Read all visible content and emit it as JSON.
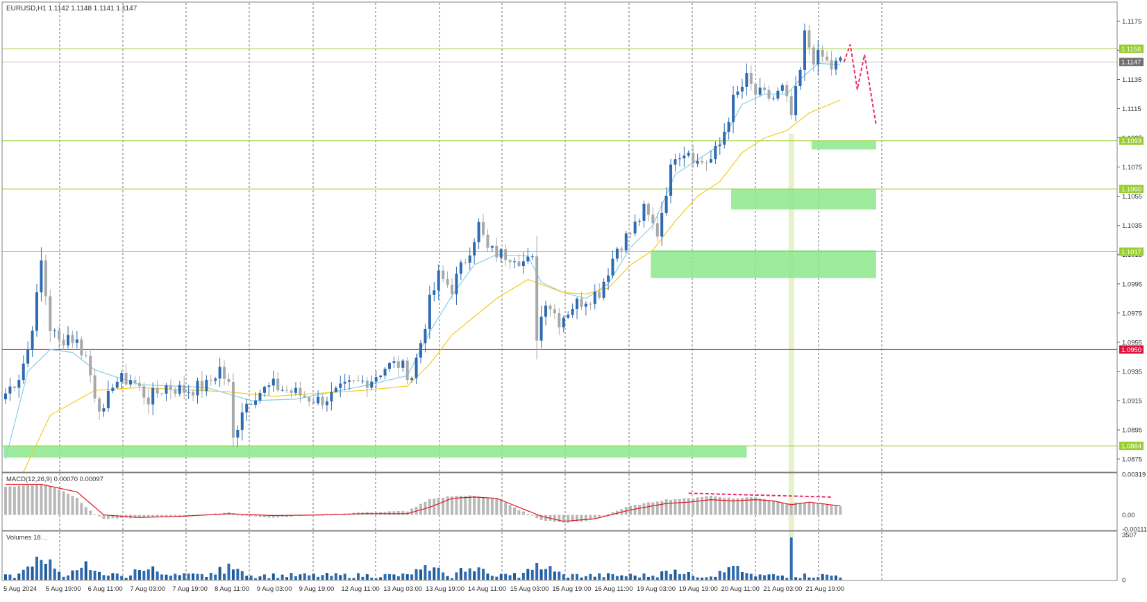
{
  "header": {
    "text": "EURUSD,H1  1.1142 1.1148 1.1141 1.1147"
  },
  "chart_data": {
    "type": "candlestick",
    "symbol": "EURUSD",
    "timeframe": "H1",
    "price_axis": {
      "range": [
        1.0866,
        1.1188
      ],
      "ticks": [
        "1.1175",
        "1.1155",
        "1.1135",
        "1.1115",
        "1.1095",
        "1.1075",
        "1.1055",
        "1.1035",
        "1.1015",
        "1.0995",
        "1.0975",
        "1.0955",
        "1.0935",
        "1.0915",
        "1.0895",
        "1.0875"
      ]
    },
    "time_axis": {
      "labels": [
        "5 Aug 2024",
        "5 Aug 19:00",
        "6 Aug 11:00",
        "7 Aug 03:00",
        "7 Aug 19:00",
        "8 Aug 11:00",
        "9 Aug 03:00",
        "9 Aug 19:00",
        "12 Aug 11:00",
        "13 Aug 03:00",
        "13 Aug 19:00",
        "14 Aug 11:00",
        "15 Aug 03:00",
        "15 Aug 19:00",
        "16 Aug 11:00",
        "19 Aug 03:00",
        "19 Aug 19:00",
        "20 Aug 11:00",
        "21 Aug 03:00",
        "21 Aug 19:00"
      ]
    },
    "price_labels": [
      {
        "text": "1.1156",
        "value": 1.1156,
        "color": "#9acd32"
      },
      {
        "text": "1.1147",
        "value": 1.1147,
        "color": "#707070"
      },
      {
        "text": "1.1093",
        "value": 1.1093,
        "color": "#9acd32"
      },
      {
        "text": "1.1060",
        "value": 1.106,
        "color": "#9acd32"
      },
      {
        "text": "1.1017",
        "value": 1.1017,
        "color": "#9acd32"
      },
      {
        "text": "1.0950",
        "value": 1.095,
        "color": "#dc143c"
      },
      {
        "text": "1.0884",
        "value": 1.0884,
        "color": "#9acd32"
      }
    ],
    "levels": [
      {
        "value": 1.1156,
        "color": "#9acd32"
      },
      {
        "value": 1.1093,
        "color": "#9acd32"
      },
      {
        "value": 1.106,
        "color": "#9acd32"
      },
      {
        "value": 1.1017,
        "color": "#9acd32"
      },
      {
        "value": 1.095,
        "color": "#dc143c"
      },
      {
        "value": 1.0884,
        "color": "#9acd32"
      }
    ],
    "zones": [
      {
        "bar_from": 181,
        "bar_to": 195,
        "price_from": 1.1093,
        "price_to": 1.1087
      },
      {
        "bar_from": 163,
        "bar_to": 195,
        "price_from": 1.106,
        "price_to": 1.1046
      },
      {
        "bar_from": 145,
        "bar_to": 195,
        "price_from": 1.1018,
        "price_to": 1.0999
      },
      {
        "bar_from": 0,
        "bar_to": 166,
        "price_from": 1.0884,
        "price_to": 1.0876
      }
    ],
    "highlight_bar": 176,
    "projection": [
      [
        187.8,
        1.1147
      ],
      [
        189.2,
        1.1159
      ],
      [
        190.8,
        1.1128
      ],
      [
        192.4,
        1.1152
      ],
      [
        195,
        1.1104
      ]
    ],
    "close_anchors": [
      [
        0,
        1.092
      ],
      [
        3,
        1.0932
      ],
      [
        5,
        1.095
      ],
      [
        7,
        1.0985
      ],
      [
        8,
        1.101
      ],
      [
        10,
        1.0965
      ],
      [
        12,
        1.0955
      ],
      [
        14,
        1.096
      ],
      [
        16,
        1.0955
      ],
      [
        18,
        1.0945
      ],
      [
        20,
        1.092
      ],
      [
        22,
        1.0905
      ],
      [
        24,
        1.0928
      ],
      [
        28,
        1.093
      ],
      [
        32,
        1.0916
      ],
      [
        36,
        1.0925
      ],
      [
        40,
        1.0922
      ],
      [
        45,
        1.0925
      ],
      [
        48,
        1.0937
      ],
      [
        50,
        1.0925
      ],
      [
        51,
        1.0888
      ],
      [
        53,
        1.091
      ],
      [
        56,
        1.092
      ],
      [
        60,
        1.0925
      ],
      [
        65,
        1.092
      ],
      [
        70,
        1.0915
      ],
      [
        73,
        1.0918
      ],
      [
        77,
        1.0925
      ],
      [
        82,
        1.093
      ],
      [
        85,
        1.0938
      ],
      [
        88,
        1.094
      ],
      [
        91,
        1.0932
      ],
      [
        93,
        1.0955
      ],
      [
        95,
        1.0982
      ],
      [
        97,
        1.1
      ],
      [
        100,
        1.0992
      ],
      [
        103,
        1.1012
      ],
      [
        106,
        1.1035
      ],
      [
        108,
        1.1018
      ],
      [
        111,
        1.1015
      ],
      [
        114,
        1.1015
      ],
      [
        116,
        1.101
      ],
      [
        118,
        1.101
      ],
      [
        119,
        1.096
      ],
      [
        121,
        1.0985
      ],
      [
        124,
        1.097
      ],
      [
        127,
        1.098
      ],
      [
        130,
        1.0985
      ],
      [
        133,
        1.099
      ],
      [
        135,
        1.1005
      ],
      [
        137,
        1.102
      ],
      [
        140,
        1.103
      ],
      [
        143,
        1.1045
      ],
      [
        146,
        1.103
      ],
      [
        148,
        1.106
      ],
      [
        150,
        1.1085
      ],
      [
        153,
        1.1087
      ],
      [
        155,
        1.1078
      ],
      [
        158,
        1.108
      ],
      [
        160,
        1.109
      ],
      [
        163,
        1.112
      ],
      [
        166,
        1.1135
      ],
      [
        168,
        1.1125
      ],
      [
        172,
        1.1122
      ],
      [
        174,
        1.1128
      ],
      [
        176,
        1.111
      ],
      [
        178,
        1.114
      ],
      [
        179,
        1.1165
      ],
      [
        181,
        1.115
      ],
      [
        183,
        1.115
      ],
      [
        185,
        1.1143
      ],
      [
        187,
        1.1147
      ]
    ],
    "ema_fast": [
      [
        0,
        1.0875
      ],
      [
        5,
        1.0935
      ],
      [
        10,
        1.095
      ],
      [
        15,
        1.0948
      ],
      [
        20,
        1.0936
      ],
      [
        30,
        1.0926
      ],
      [
        45,
        1.0924
      ],
      [
        55,
        1.0915
      ],
      [
        65,
        1.0916
      ],
      [
        80,
        1.0925
      ],
      [
        90,
        1.0932
      ],
      [
        95,
        1.0962
      ],
      [
        100,
        1.0987
      ],
      [
        105,
        1.1008
      ],
      [
        110,
        1.1015
      ],
      [
        117,
        1.1014
      ],
      [
        120,
        1.0996
      ],
      [
        125,
        1.0989
      ],
      [
        130,
        1.0985
      ],
      [
        135,
        1.0995
      ],
      [
        140,
        1.102
      ],
      [
        145,
        1.1035
      ],
      [
        150,
        1.107
      ],
      [
        155,
        1.108
      ],
      [
        160,
        1.109
      ],
      [
        165,
        1.1118
      ],
      [
        170,
        1.1125
      ],
      [
        175,
        1.1125
      ],
      [
        178,
        1.1135
      ],
      [
        182,
        1.1146
      ],
      [
        187,
        1.1145
      ]
    ],
    "ema_slow": [
      [
        4,
        1.0866
      ],
      [
        10,
        1.0905
      ],
      [
        20,
        1.0922
      ],
      [
        30,
        1.0924
      ],
      [
        50,
        1.0921
      ],
      [
        60,
        1.0918
      ],
      [
        80,
        1.0922
      ],
      [
        90,
        1.0925
      ],
      [
        95,
        1.094
      ],
      [
        100,
        1.096
      ],
      [
        110,
        1.0985
      ],
      [
        117,
        1.0998
      ],
      [
        125,
        1.0989
      ],
      [
        130,
        1.0988
      ],
      [
        135,
        1.0992
      ],
      [
        140,
        1.1008
      ],
      [
        145,
        1.1018
      ],
      [
        150,
        1.1038
      ],
      [
        155,
        1.1055
      ],
      [
        160,
        1.1065
      ],
      [
        165,
        1.1085
      ],
      [
        170,
        1.1095
      ],
      [
        175,
        1.11
      ],
      [
        180,
        1.1112
      ],
      [
        187,
        1.1121
      ]
    ],
    "macd": {
      "title": "MACD(12,26,9) 0.00070 0.00097",
      "range": [
        -0.00111,
        0.00319
      ],
      "tick_labels": [
        "0.00319",
        "0.00",
        "-0.00111"
      ],
      "tick_values": [
        0.00319,
        0.0,
        -0.00111
      ],
      "hist_anchors": [
        [
          0,
          0.0022
        ],
        [
          8,
          0.0024
        ],
        [
          12,
          0.002
        ],
        [
          16,
          0.0013
        ],
        [
          20,
          0.0
        ],
        [
          22,
          -0.0003
        ],
        [
          30,
          -0.0002
        ],
        [
          40,
          -0.0001
        ],
        [
          50,
          0.0002
        ],
        [
          52,
          0.0
        ],
        [
          60,
          -0.0002
        ],
        [
          70,
          0.0
        ],
        [
          80,
          0.0002
        ],
        [
          90,
          0.0003
        ],
        [
          95,
          0.0012
        ],
        [
          100,
          0.0015
        ],
        [
          105,
          0.0015
        ],
        [
          110,
          0.0013
        ],
        [
          115,
          0.0004
        ],
        [
          120,
          -0.0004
        ],
        [
          125,
          -0.0006
        ],
        [
          130,
          -0.0005
        ],
        [
          140,
          0.0007
        ],
        [
          148,
          0.0012
        ],
        [
          153,
          0.0013
        ],
        [
          158,
          0.0015
        ],
        [
          163,
          0.0013
        ],
        [
          168,
          0.0014
        ],
        [
          175,
          0.0009
        ],
        [
          180,
          0.001
        ],
        [
          187,
          0.0007
        ]
      ],
      "signal_anchors": [
        [
          0,
          0.0024
        ],
        [
          8,
          0.0024
        ],
        [
          16,
          0.0018
        ],
        [
          22,
          0.0
        ],
        [
          30,
          -0.0002
        ],
        [
          40,
          -0.0001
        ],
        [
          50,
          0.0001
        ],
        [
          60,
          -5e-05
        ],
        [
          70,
          0.0
        ],
        [
          80,
          0.0001
        ],
        [
          90,
          0.0001
        ],
        [
          95,
          0.0006
        ],
        [
          100,
          0.0013
        ],
        [
          105,
          0.0014
        ],
        [
          110,
          0.0013
        ],
        [
          115,
          0.0006
        ],
        [
          120,
          -0.0001
        ],
        [
          125,
          -0.0005
        ],
        [
          132,
          -0.0003
        ],
        [
          140,
          0.0004
        ],
        [
          148,
          0.0009
        ],
        [
          153,
          0.001
        ],
        [
          158,
          0.0012
        ],
        [
          163,
          0.0011
        ],
        [
          168,
          0.0012
        ],
        [
          172,
          0.0011
        ],
        [
          176,
          0.0008
        ],
        [
          180,
          0.001
        ],
        [
          187,
          0.0007
        ]
      ],
      "divergence": [
        [
          153,
          0.0017
        ],
        [
          185,
          0.0014
        ]
      ]
    },
    "volumes": {
      "title": "Volumes 18…",
      "range": [
        0,
        3507
      ],
      "tick_labels": [
        "3507",
        "0"
      ],
      "tick_values": [
        3507,
        0
      ],
      "spike_bar": 176,
      "spike_value": 3300,
      "bumps": [
        [
          8,
          1700
        ],
        [
          18,
          900
        ],
        [
          32,
          700
        ],
        [
          50,
          800
        ],
        [
          95,
          800
        ],
        [
          105,
          900
        ],
        [
          120,
          900
        ],
        [
          150,
          500
        ],
        [
          163,
          600
        ]
      ]
    },
    "colors": {
      "bull": "#2e6bb0",
      "bear": "#a8a8a8",
      "ema_fast": "#87ceeb",
      "ema_slow": "#f5cc1b",
      "macd_hist": "#b8b8b8",
      "macd_signal": "#e0141e",
      "zone": "#8ce88c",
      "projection": "#ee2a60",
      "grid": "#404040"
    }
  }
}
